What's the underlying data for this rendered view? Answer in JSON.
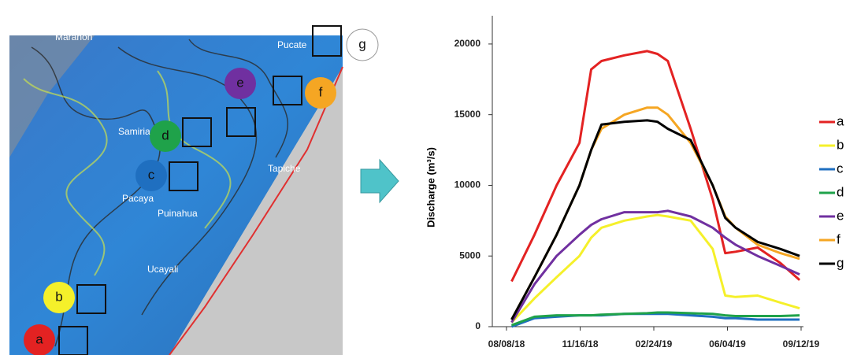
{
  "map": {
    "labels": [
      "Maranon",
      "Pucate",
      "Samiria",
      "Pacaya",
      "Puinahua",
      "Ucayali",
      "Tapiche"
    ]
  },
  "chart_data": {
    "type": "line",
    "y_label": "Discharge (m³/s)",
    "x": [
      "08/15/18",
      "09/15/18",
      "10/15/18",
      "11/15/18",
      "12/01/18",
      "12/15/18",
      "01/15/19",
      "02/15/19",
      "03/01/19",
      "03/15/19",
      "04/15/19",
      "05/15/19",
      "06/01/19",
      "06/15/19",
      "07/15/19",
      "08/15/19",
      "09/10/19"
    ],
    "xlim": [
      "08/08/18",
      "09/12/19"
    ],
    "xticks": [
      "08/08/18",
      "11/16/18",
      "02/24/19",
      "06/04/19",
      "09/12/19"
    ],
    "ylim": [
      0,
      22000
    ],
    "yticks": [
      0,
      5000,
      10000,
      15000,
      20000
    ],
    "series": [
      {
        "name": "a",
        "color": "#e32222",
        "values": [
          3200,
          6500,
          10000,
          13000,
          18200,
          18800,
          19200,
          19500,
          19300,
          18800,
          14000,
          9000,
          5200,
          5300,
          5600,
          4500,
          3300
        ]
      },
      {
        "name": "b",
        "color": "#f5f02a",
        "values": [
          300,
          2000,
          3500,
          5000,
          6300,
          7000,
          7500,
          7800,
          7900,
          7800,
          7500,
          5500,
          2200,
          2100,
          2200,
          1700,
          1300
        ]
      },
      {
        "name": "c",
        "color": "#1f6fc0",
        "values": [
          0,
          600,
          700,
          800,
          800,
          800,
          900,
          900,
          900,
          900,
          800,
          700,
          600,
          600,
          500,
          500,
          500
        ]
      },
      {
        "name": "d",
        "color": "#1fa24a",
        "values": [
          100,
          700,
          800,
          800,
          800,
          850,
          900,
          950,
          1000,
          1000,
          950,
          900,
          800,
          750,
          750,
          750,
          800
        ]
      },
      {
        "name": "e",
        "color": "#7030a0",
        "values": [
          300,
          3000,
          5000,
          6500,
          7200,
          7600,
          8100,
          8100,
          8100,
          8200,
          7800,
          7000,
          6300,
          5800,
          5000,
          4300,
          3700
        ]
      },
      {
        "name": "f",
        "color": "#f5a623",
        "values": [
          500,
          3500,
          6500,
          10000,
          12500,
          14000,
          15000,
          15500,
          15500,
          15000,
          13000,
          10000,
          7800,
          7000,
          5800,
          5200,
          4800
        ]
      },
      {
        "name": "g",
        "color": "#000000",
        "values": [
          500,
          3500,
          6500,
          10000,
          12500,
          14300,
          14500,
          14600,
          14500,
          14000,
          13200,
          10000,
          7700,
          7000,
          6000,
          5500,
          5000
        ]
      }
    ]
  }
}
